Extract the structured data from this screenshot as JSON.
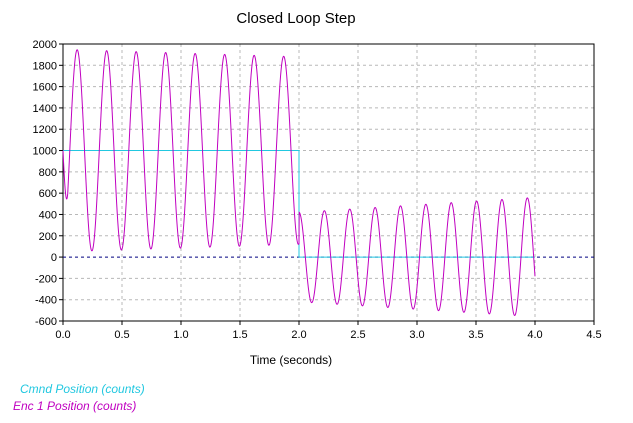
{
  "chart_data": {
    "type": "line",
    "title": "Closed Loop Step",
    "xlabel": "Time (seconds)",
    "ylabel": "",
    "xlim": [
      0,
      4.5
    ],
    "ylim": [
      -600,
      2000
    ],
    "xticks": [
      "0.0",
      "0.5",
      "1.0",
      "1.5",
      "2.0",
      "2.5",
      "3.0",
      "3.5",
      "4.0",
      "4.5"
    ],
    "yticks": [
      "2000",
      "1800",
      "1600",
      "1400",
      "1200",
      "1000",
      "800",
      "600",
      "400",
      "200",
      "0",
      "-200",
      "-400",
      "-600"
    ],
    "grid": true,
    "zero_line": true,
    "legend_position": "bottom-left",
    "series": [
      {
        "name": "Cmnd Position (counts)",
        "color": "#22c8e0",
        "x": [
          0,
          2.0,
          2.0,
          4.0
        ],
        "y": [
          1000,
          1000,
          0,
          0
        ]
      },
      {
        "name": "Enc 1 Position (counts)",
        "color": "#c000c0",
        "signal": {
          "initial_value": 0,
          "step_time": 2.0,
          "end_time": 4.0,
          "segments": [
            {
              "start": 0.0,
              "end": 2.0,
              "center": 1000,
              "amplitude": 950,
              "amplitude_end": 880,
              "period": 0.25
            },
            {
              "start": 2.0,
              "end": 4.0,
              "center": 0,
              "amplitude": 420,
              "amplitude_end": 560,
              "period": 0.215
            }
          ]
        },
        "peaks": [
          {
            "x": 0.13,
            "y": 1950
          },
          {
            "x": 0.4,
            "y": 1940
          },
          {
            "x": 0.65,
            "y": 1930
          },
          {
            "x": 0.9,
            "y": 1920
          },
          {
            "x": 1.15,
            "y": 1910
          },
          {
            "x": 1.4,
            "y": 1905
          },
          {
            "x": 1.65,
            "y": 1900
          },
          {
            "x": 1.9,
            "y": 1890
          },
          {
            "x": 2.2,
            "y": 480
          },
          {
            "x": 2.4,
            "y": 500
          },
          {
            "x": 2.6,
            "y": 510
          },
          {
            "x": 2.82,
            "y": 520
          },
          {
            "x": 3.03,
            "y": 540
          },
          {
            "x": 3.25,
            "y": 560
          },
          {
            "x": 3.47,
            "y": 580
          },
          {
            "x": 3.68,
            "y": 590
          },
          {
            "x": 3.9,
            "y": 600
          }
        ]
      }
    ]
  }
}
